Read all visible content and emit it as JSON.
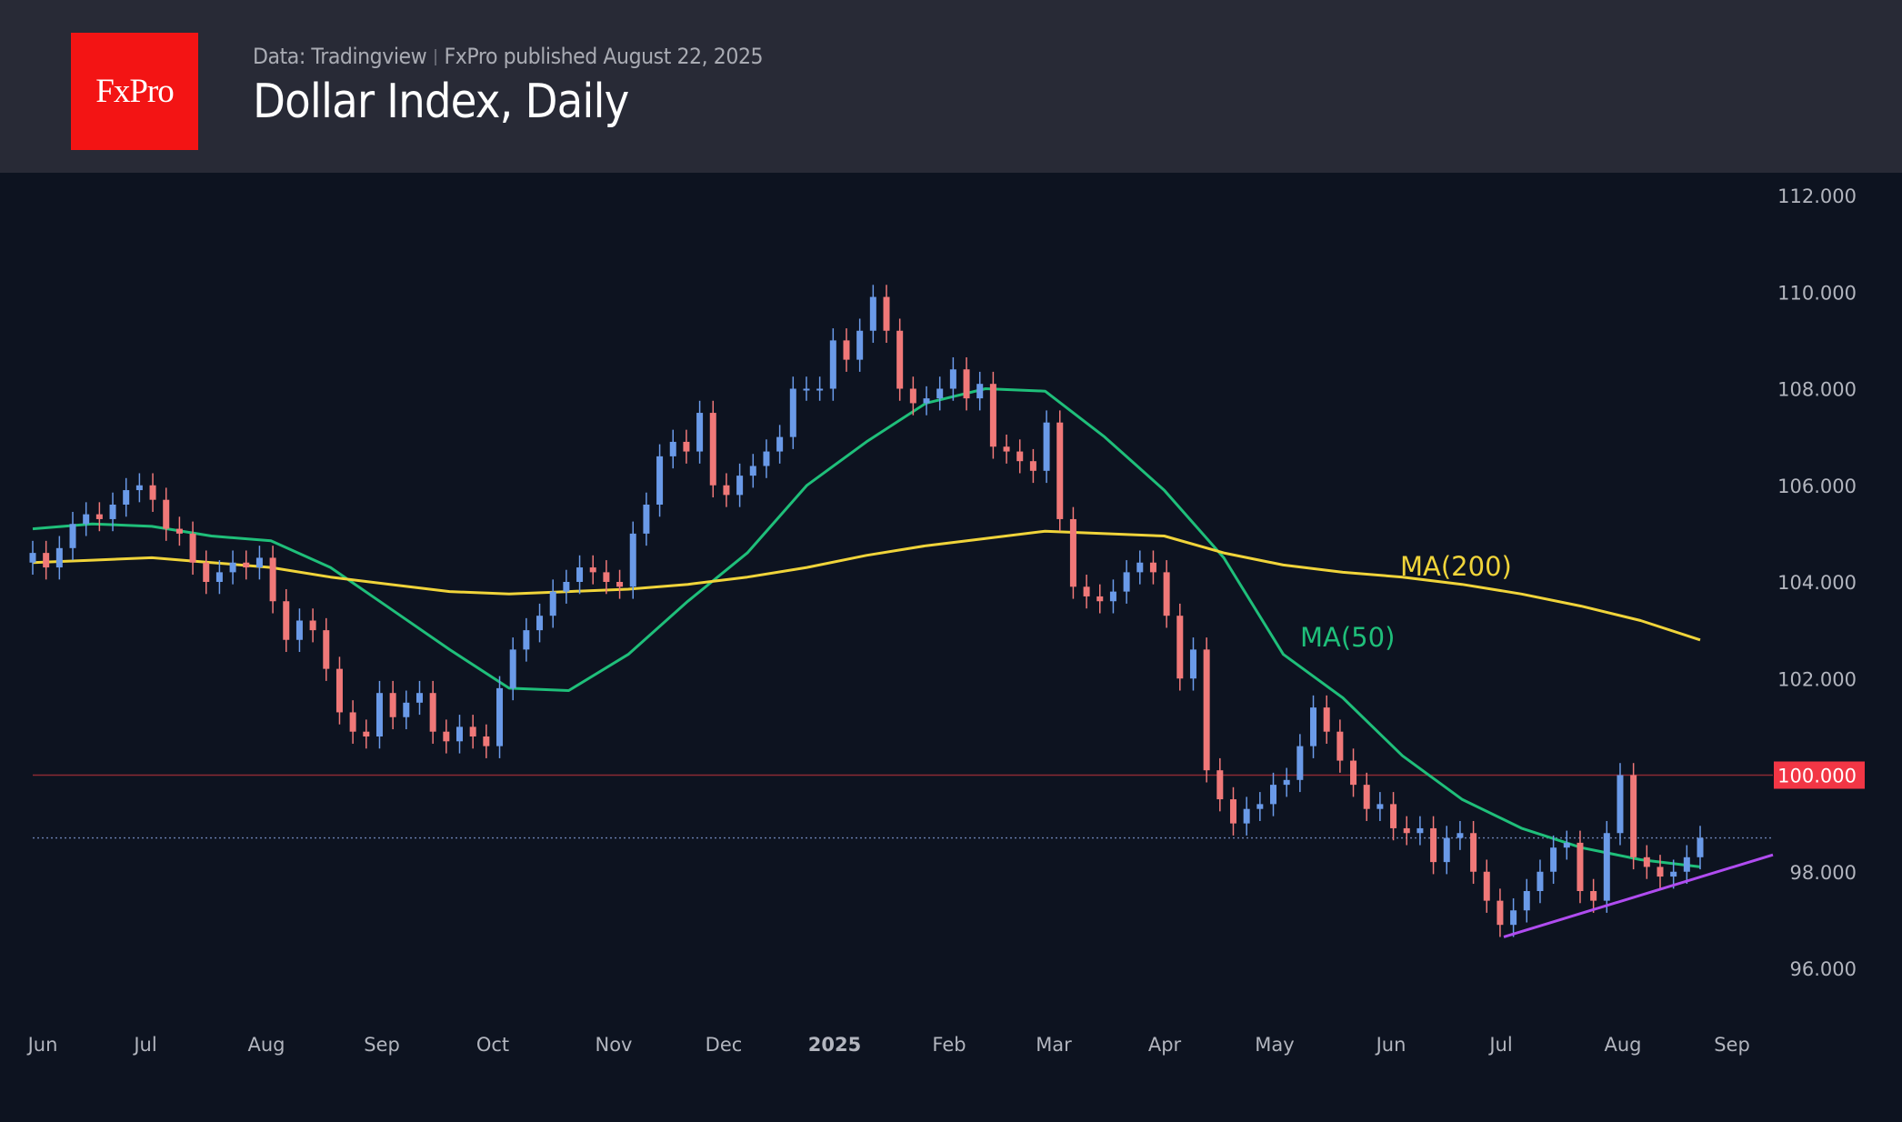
{
  "header": {
    "logo_text": "FxPro",
    "source": "Data: Tradingview",
    "published": "FxPro published August 22, 2025",
    "title": "Dollar Index, Daily"
  },
  "colors": {
    "background": "#0d1320",
    "header": "#282a36",
    "brand": "#f31414",
    "up_candle": "#6a9ae8",
    "down_candle": "#f07878",
    "ma50": "#1fbf7a",
    "ma200": "#f0d43a",
    "trendline": "#b04cf0",
    "level_line": "#8b2a33",
    "level_badge": "#f23645"
  },
  "chart_data": {
    "type": "candlestick",
    "title": "Dollar Index, Daily",
    "ylim": [
      95,
      112.8
    ],
    "y_ticks": [
      "112.000",
      "110.000",
      "108.000",
      "106.000",
      "104.000",
      "102.000",
      "100.000",
      "98.000",
      "96.000"
    ],
    "x_ticks": [
      "Jun",
      "Jul",
      "Aug",
      "Sep",
      "Oct",
      "Nov",
      "Dec",
      "2025",
      "Feb",
      "Mar",
      "Apr",
      "May",
      "Jun",
      "Jul",
      "Aug",
      "Sep"
    ],
    "x_range": [
      "2024-05-28",
      "2025-08-22"
    ],
    "closes": [
      104.6,
      104.3,
      104.7,
      105.2,
      105.4,
      105.3,
      105.6,
      105.9,
      106.0,
      105.7,
      105.1,
      105.0,
      104.4,
      104.0,
      104.2,
      104.4,
      104.3,
      104.5,
      103.6,
      102.8,
      103.2,
      103.0,
      102.2,
      101.3,
      100.9,
      100.8,
      101.7,
      101.2,
      101.5,
      101.7,
      100.9,
      100.7,
      101.0,
      100.8,
      100.6,
      101.8,
      102.6,
      103.0,
      103.3,
      103.8,
      104.0,
      104.3,
      104.2,
      104.0,
      103.9,
      105.0,
      105.6,
      106.6,
      106.9,
      106.7,
      107.5,
      106.0,
      105.8,
      106.2,
      106.4,
      106.7,
      107.0,
      108.0,
      108.0,
      108.0,
      109.0,
      108.6,
      109.2,
      109.9,
      109.2,
      108.0,
      107.7,
      107.8,
      108.0,
      108.4,
      107.8,
      108.1,
      106.8,
      106.7,
      106.5,
      106.3,
      107.3,
      105.3,
      103.9,
      103.7,
      103.6,
      103.8,
      104.2,
      104.4,
      104.2,
      103.3,
      102.0,
      102.6,
      100.1,
      99.5,
      99.0,
      99.3,
      99.4,
      99.8,
      99.9,
      100.6,
      101.4,
      100.9,
      100.3,
      99.8,
      99.3,
      99.4,
      98.9,
      98.8,
      98.9,
      98.2,
      98.7,
      98.8,
      98.0,
      97.4,
      96.9,
      97.2,
      97.6,
      98.0,
      98.5,
      98.6,
      97.6,
      97.4,
      98.8,
      100.0,
      98.3,
      98.1,
      97.9,
      98.0,
      98.3,
      98.7
    ],
    "series": [
      {
        "name": "MA(50)",
        "values": [
          105.1,
          105.2,
          105.15,
          104.95,
          104.85,
          104.3,
          103.45,
          102.6,
          101.8,
          101.75,
          102.5,
          103.6,
          104.6,
          106.0,
          106.9,
          107.7,
          108.0,
          107.95,
          107.0,
          105.9,
          104.5,
          102.5,
          101.6,
          100.4,
          99.5,
          98.9,
          98.5,
          98.25,
          98.1
        ]
      },
      {
        "name": "MA(200)",
        "values": [
          104.4,
          104.45,
          104.5,
          104.4,
          104.3,
          104.1,
          103.95,
          103.8,
          103.75,
          103.8,
          103.85,
          103.95,
          104.1,
          104.3,
          104.55,
          104.75,
          104.9,
          105.05,
          105.0,
          104.95,
          104.6,
          104.35,
          104.2,
          104.1,
          103.95,
          103.75,
          103.5,
          103.2,
          102.8
        ]
      }
    ],
    "level": {
      "value": 100.0,
      "label": "100.000"
    },
    "last_price": 98.7,
    "trendline": {
      "from": 96.65,
      "to": 98.35
    }
  }
}
